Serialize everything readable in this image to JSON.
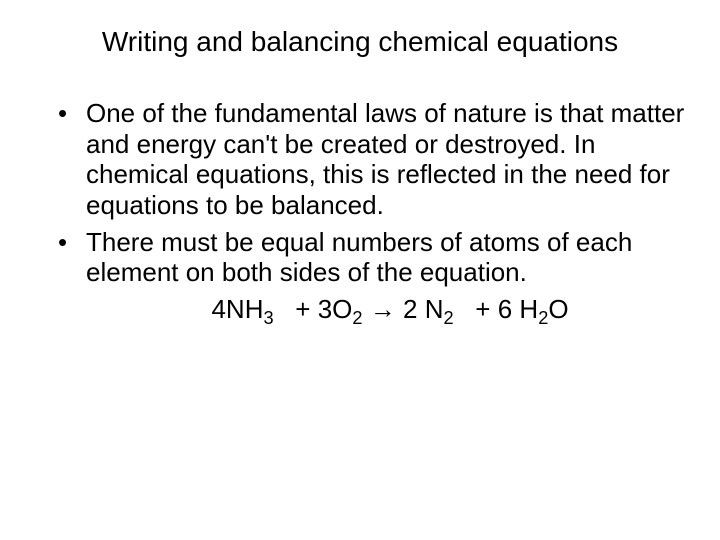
{
  "background_color": "#ffffff",
  "text_color": "#000000",
  "title": {
    "text": "Writing and balancing chemical equations",
    "fontsize": 28
  },
  "bullets": [
    "One of the fundamental laws of nature is that matter and energy can't be created or destroyed.  In chemical equations, this is reflected in the need for equations to be balanced.",
    "There must be equal numbers of atoms of each element on both sides of the equation."
  ],
  "equation": {
    "fontsize": 26,
    "terms": [
      {
        "coef": "4",
        "formula_html": "NH<sub>3</sub>"
      },
      {
        "op": "+"
      },
      {
        "coef": "3",
        "formula_html": "O<sub>2</sub>"
      },
      {
        "op": "→"
      },
      {
        "coef": "2",
        "formula_html": "N<sub>2</sub>"
      },
      {
        "op": "+"
      },
      {
        "coef": "6",
        "formula_html": "H<sub>2</sub>O"
      }
    ]
  }
}
